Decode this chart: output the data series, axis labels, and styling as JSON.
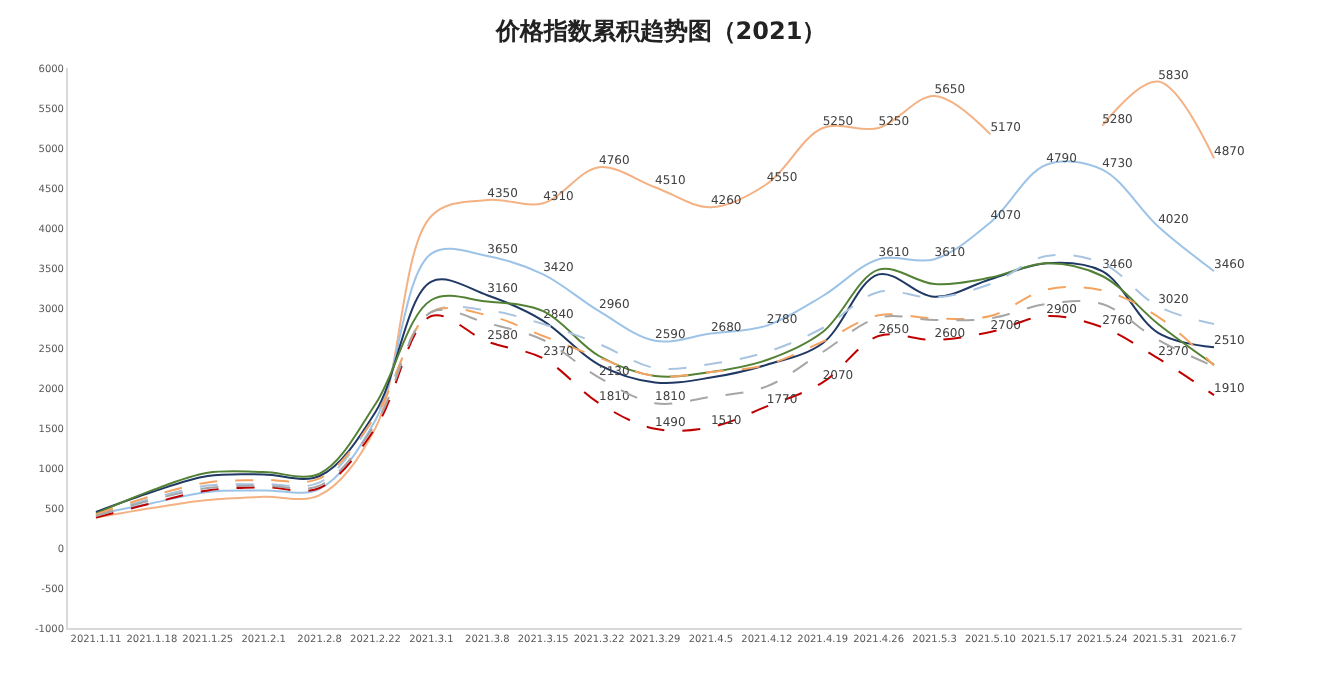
{
  "chart_data": {
    "type": "line",
    "title": "价格指数累积趋势图（2021）",
    "categories": [
      "2021.1.11",
      "2021.1.18",
      "2021.1.25",
      "2021.2.1",
      "2021.2.8",
      "2021.2.22",
      "2021.3.1",
      "2021.3.8",
      "2021.3.15",
      "2021.3.22",
      "2021.3.29",
      "2021.4.5",
      "2021.4.12",
      "2021.4.19",
      "2021.4.26",
      "2021.5.3",
      "2021.5.10",
      "2021.5.17",
      "2021.5.24",
      "2021.5.31",
      "2021.6.7"
    ],
    "ylim": [
      -1000,
      6000
    ],
    "yticks": [
      -1000,
      -500,
      0,
      500,
      1000,
      1500,
      2000,
      2500,
      3000,
      3500,
      4000,
      4500,
      5000,
      5500,
      6000
    ],
    "grid": false,
    "marker": "none",
    "series": [
      {
        "color": "#f4b183",
        "line_style": "solid",
        "values": [
          380,
          500,
          600,
          640,
          660,
          1500,
          4150,
          4350,
          4310,
          4760,
          4510,
          4260,
          4550,
          5250,
          5250,
          5650,
          5170,
          null,
          5280,
          5830,
          4870
        ],
        "value_labels": [
          null,
          null,
          null,
          null,
          null,
          null,
          null,
          "4350",
          "4310",
          "4760",
          "4510",
          "4260",
          "4550",
          "5250",
          "5250",
          "5650",
          "5170",
          null,
          "5280",
          "5830",
          "4870"
        ]
      },
      {
        "color": "#9dc3e6",
        "line_style": "solid",
        "values": [
          420,
          560,
          700,
          720,
          740,
          1600,
          3680,
          3650,
          3420,
          2960,
          2590,
          2680,
          2780,
          3150,
          3610,
          3610,
          4070,
          4790,
          4730,
          4020,
          3460
        ],
        "value_labels": [
          null,
          null,
          null,
          null,
          null,
          null,
          null,
          "3650",
          "3420",
          "2960",
          "2590",
          "2680",
          "2780",
          null,
          "3610",
          "3610",
          "4070",
          "4790",
          "4730",
          "4020",
          "3460"
        ]
      },
      {
        "color": "#1f3864",
        "line_style": "solid",
        "values": [
          450,
          700,
          900,
          920,
          900,
          1700,
          3330,
          3160,
          2840,
          2290,
          2070,
          2130,
          2290,
          2560,
          3420,
          3140,
          3360,
          3560,
          3460,
          2690,
          2510
        ],
        "value_labels": [
          null,
          null,
          null,
          null,
          null,
          null,
          null,
          "3160",
          "2840",
          null,
          null,
          null,
          null,
          null,
          null,
          null,
          null,
          null,
          "3460",
          null,
          "2510"
        ]
      },
      {
        "color": "#548235",
        "line_style": "solid",
        "values": [
          430,
          720,
          940,
          950,
          930,
          1800,
          3100,
          3080,
          2960,
          2400,
          2150,
          2200,
          2350,
          2700,
          3480,
          3300,
          3380,
          3560,
          3400,
          2800,
          2290
        ]
      },
      {
        "color": "#a9c4e0",
        "line_style": "dashed",
        "values": [
          400,
          620,
          780,
          800,
          820,
          1650,
          2950,
          2970,
          2800,
          2550,
          2250,
          2300,
          2450,
          2750,
          3200,
          3130,
          3300,
          3650,
          3560,
          3020,
          2800
        ],
        "value_labels": [
          null,
          null,
          null,
          null,
          null,
          null,
          null,
          null,
          null,
          null,
          null,
          null,
          null,
          null,
          null,
          null,
          null,
          null,
          null,
          "3020",
          null
        ]
      },
      {
        "color": "#f4a460",
        "line_style": "dashed",
        "values": [
          420,
          650,
          820,
          850,
          870,
          1650,
          2950,
          2910,
          2650,
          2380,
          2150,
          2200,
          2290,
          2580,
          2910,
          2870,
          2900,
          3230,
          3220,
          2890,
          2280
        ]
      },
      {
        "color": "#c00000",
        "line_style": "dashed",
        "values": [
          380,
          560,
          720,
          760,
          750,
          1500,
          2900,
          2580,
          2370,
          1810,
          1490,
          1510,
          1770,
          2070,
          2650,
          2600,
          2700,
          2900,
          2760,
          2370,
          1910
        ],
        "value_labels": [
          null,
          null,
          null,
          null,
          null,
          null,
          null,
          "2580",
          "2370",
          "1810",
          "1490",
          "1510",
          "1770",
          "2070",
          "2650",
          "2600",
          "2700",
          "2900",
          "2760",
          "2370",
          "1910"
        ]
      },
      {
        "color": "#a6a6a6",
        "line_style": "dashed",
        "values": [
          400,
          600,
          750,
          780,
          780,
          1550,
          2950,
          2810,
          2600,
          2130,
          1810,
          1890,
          2020,
          2450,
          2880,
          2850,
          2870,
          3050,
          3050,
          2600,
          2270
        ],
        "value_labels": [
          null,
          null,
          null,
          null,
          null,
          null,
          null,
          null,
          null,
          "2130",
          "1810",
          null,
          null,
          null,
          null,
          null,
          null,
          null,
          null,
          null,
          null
        ]
      }
    ]
  }
}
